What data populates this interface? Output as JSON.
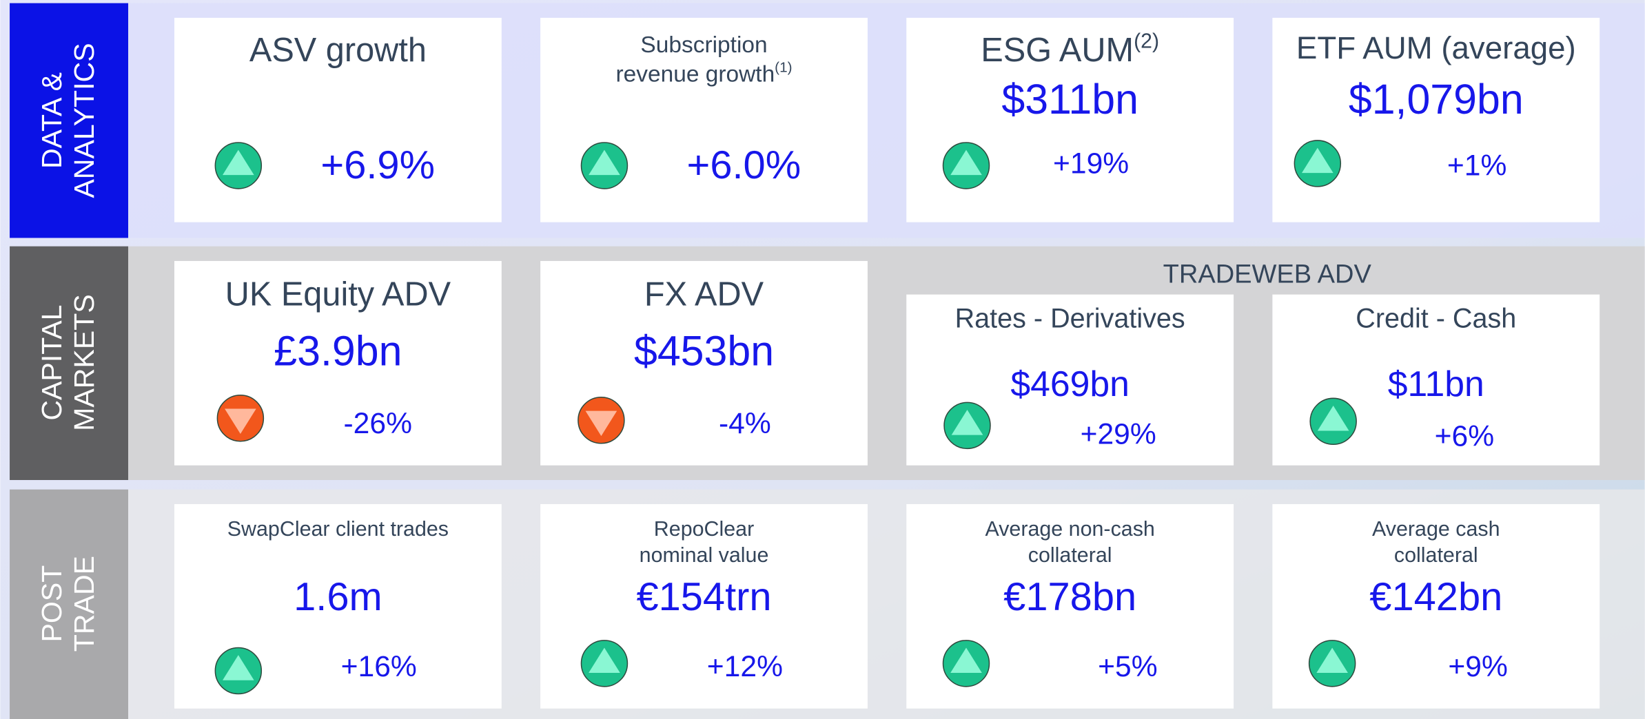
{
  "sections": [
    {
      "label": [
        "DATA &",
        "ANALYTICS"
      ],
      "cards": [
        {
          "title": [
            "ASV growth"
          ],
          "change": "+6.9%",
          "trend": "up"
        },
        {
          "title": [
            "Subscription",
            "revenue growth"
          ],
          "title_note": "(1)",
          "change": "+6.0%",
          "trend": "up"
        },
        {
          "title": [
            "ESG AUM"
          ],
          "title_note": "(2)",
          "value": "$311bn",
          "change": "+19%",
          "trend": "up"
        },
        {
          "title": [
            "ETF AUM (average)"
          ],
          "value": "$1,079bn",
          "change": "+1%",
          "trend": "up"
        }
      ]
    },
    {
      "label": [
        "CAPITAL",
        "MARKETS"
      ],
      "group_title": "TRADEWEB ADV",
      "cards": [
        {
          "title": [
            "UK Equity ADV"
          ],
          "value": "£3.9bn",
          "change": "-26%",
          "trend": "down"
        },
        {
          "title": [
            "FX ADV"
          ],
          "value": "$453bn",
          "change": "-4%",
          "trend": "down"
        },
        {
          "title": [
            "Rates - Derivatives"
          ],
          "value": "$469bn",
          "change": "+29%",
          "trend": "up"
        },
        {
          "title": [
            "Credit - Cash"
          ],
          "value": "$11bn",
          "change": "+6%",
          "trend": "up"
        }
      ]
    },
    {
      "label": [
        "POST",
        "TRADE"
      ],
      "cards": [
        {
          "title": [
            "SwapClear client trades"
          ],
          "value": "1.6m",
          "change": "+16%",
          "trend": "up"
        },
        {
          "title": [
            "RepoClear",
            "nominal value"
          ],
          "value": "€154trn",
          "change": "+12%",
          "trend": "up"
        },
        {
          "title": [
            "Average non-cash",
            "collateral"
          ],
          "value": "€178bn",
          "change": "+5%",
          "trend": "up"
        },
        {
          "title": [
            "Average cash",
            "collateral"
          ],
          "value": "€142bn",
          "change": "+9%",
          "trend": "up"
        }
      ]
    }
  ]
}
